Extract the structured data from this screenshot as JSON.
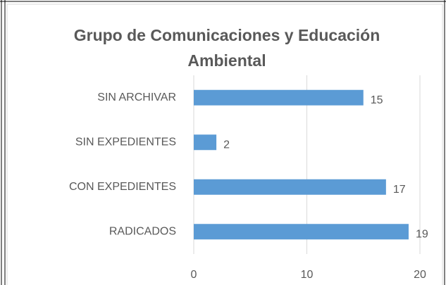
{
  "chart_data": {
    "type": "hbar",
    "title": "Grupo de Comunicaciones y Educación Ambiental",
    "categories": [
      "SIN ARCHIVAR",
      "SIN EXPEDIENTES",
      "CON EXPEDIENTES",
      "RADICADOS"
    ],
    "values": [
      15,
      2,
      17,
      19
    ],
    "color": "#5b9bd5",
    "xlim": [
      0,
      20
    ],
    "xticks": [
      0,
      10,
      20
    ],
    "grid": true
  }
}
